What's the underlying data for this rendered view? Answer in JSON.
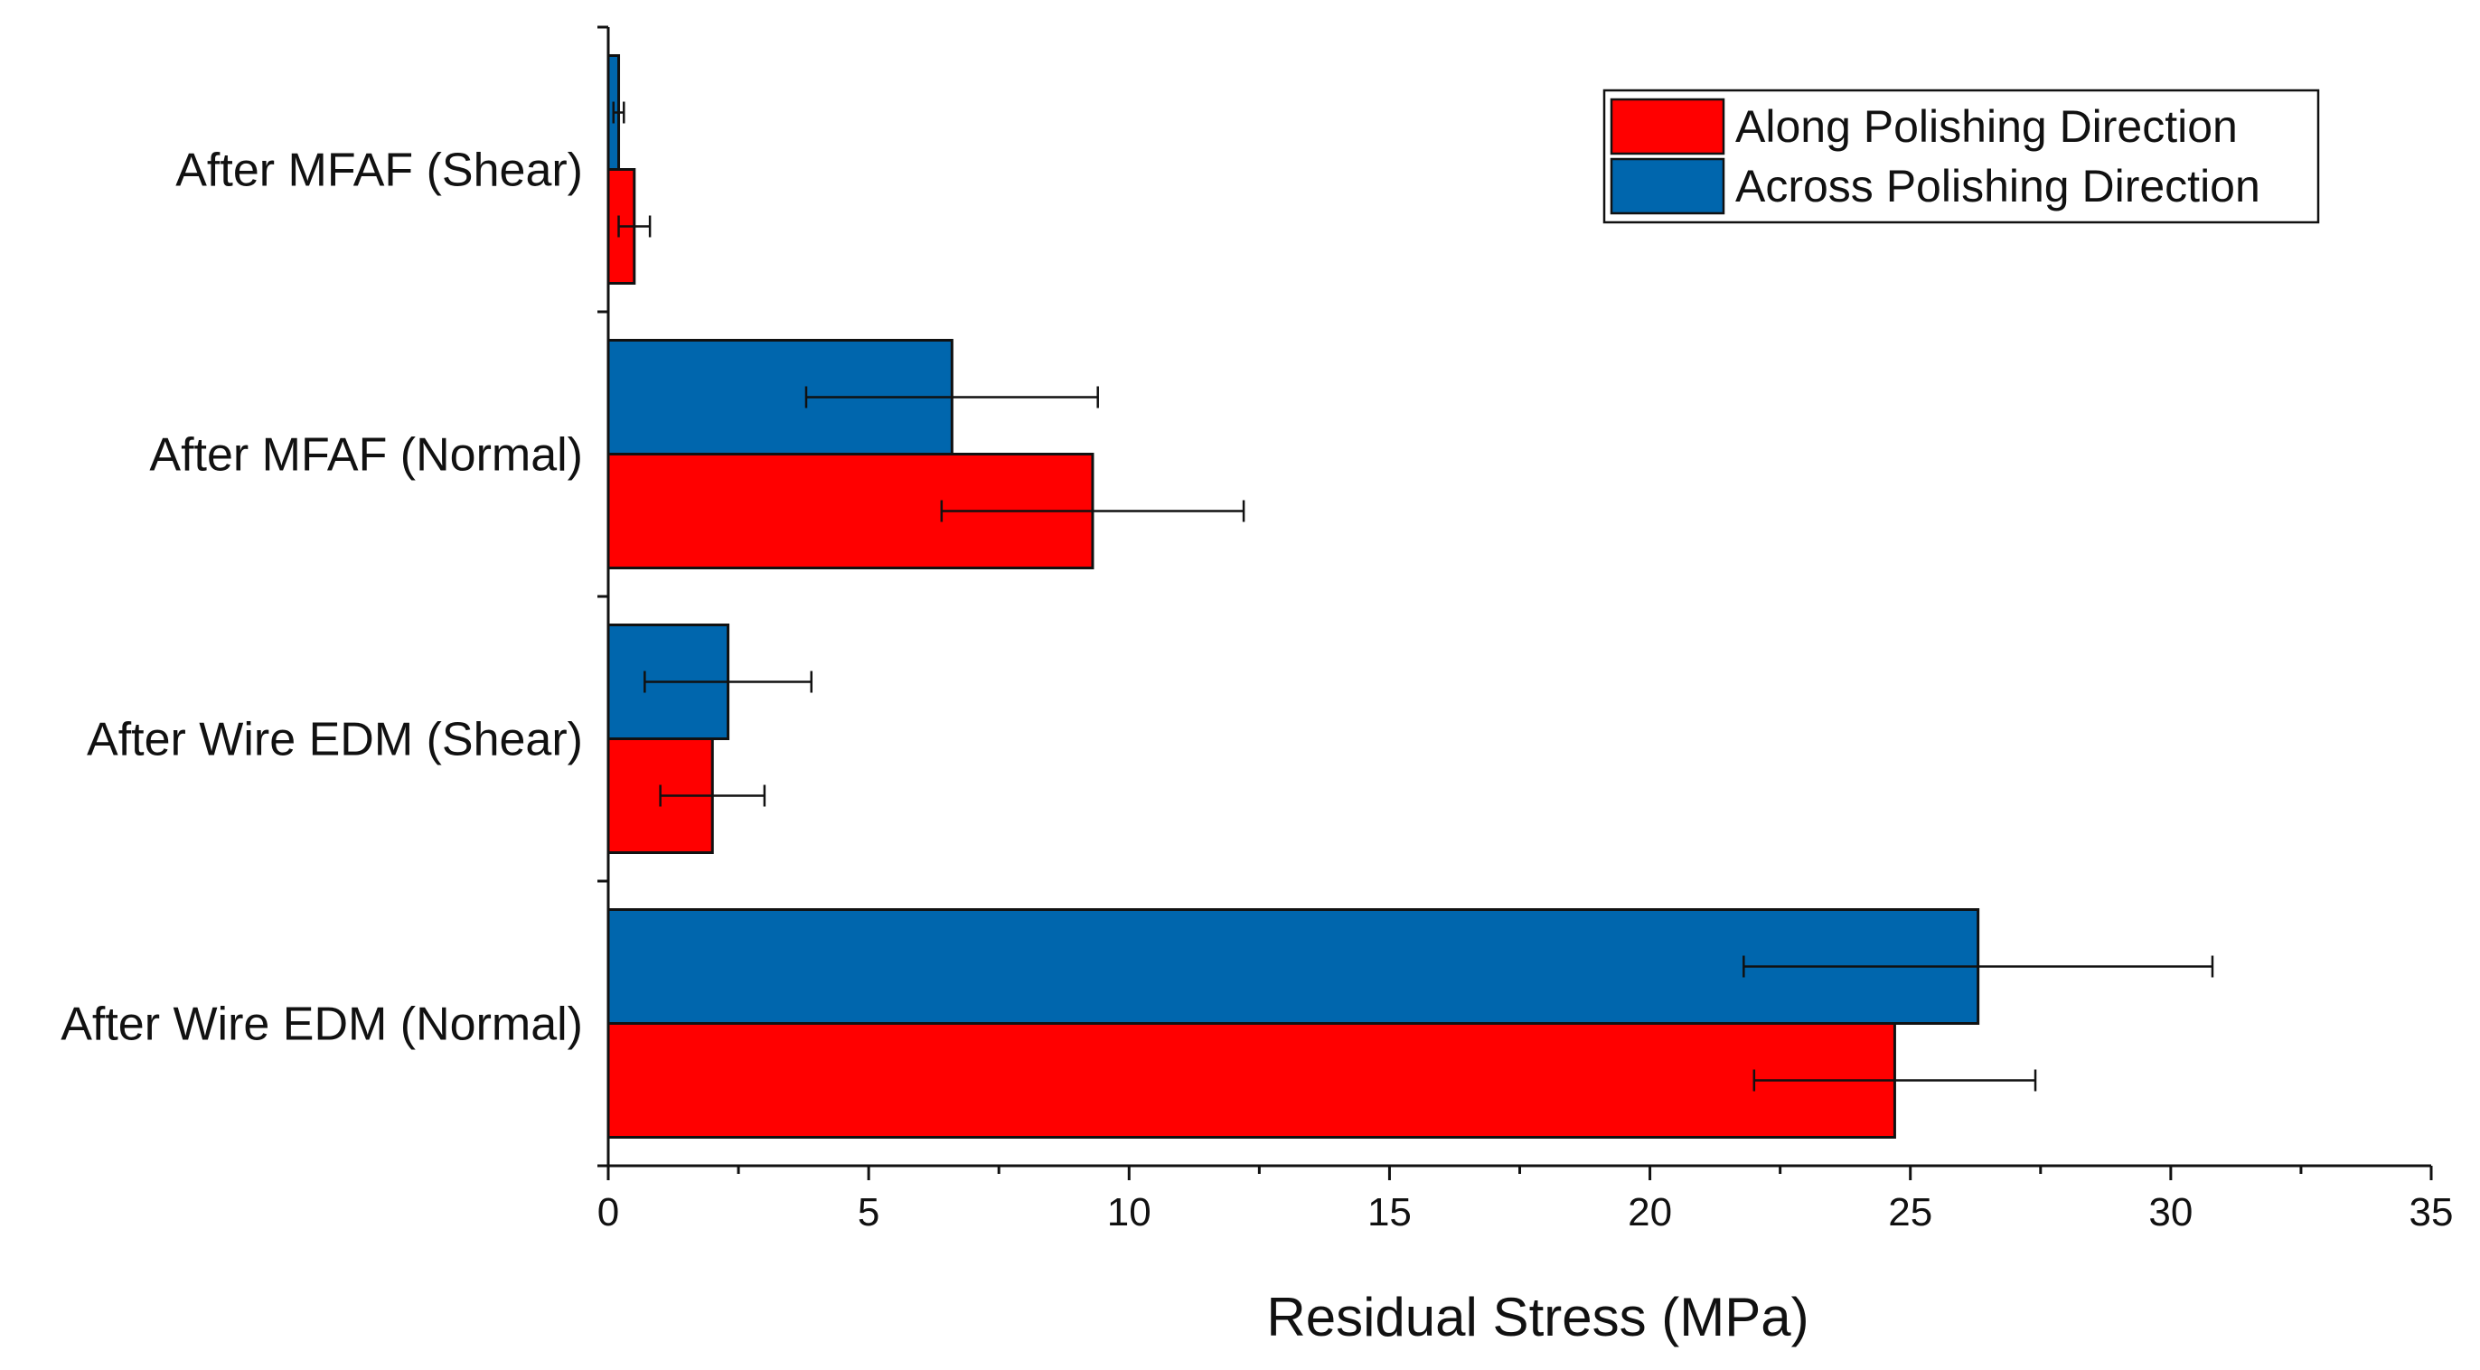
{
  "chart_data": {
    "type": "bar",
    "orientation": "horizontal",
    "title": "",
    "xlabel": "Residual Stress (MPa)",
    "ylabel": "",
    "xlim": [
      0,
      35
    ],
    "xticks": [
      "0",
      "5",
      "10",
      "15",
      "20",
      "25",
      "30",
      "35"
    ],
    "categories": [
      "After Wire EDM (Normal)",
      "After Wire EDM (Shear)",
      "After MFAF (Normal)",
      "After MFAF (Shear)"
    ],
    "series": [
      {
        "name": "Along Polishing Direction",
        "color": "#ff0000",
        "values": [
          24.7,
          2.0,
          9.3,
          0.5
        ],
        "errors": [
          2.7,
          1.0,
          2.9,
          0.3
        ]
      },
      {
        "name": "Across Polishing Direction",
        "color": "#0066ad",
        "values": [
          26.3,
          2.3,
          6.6,
          0.2
        ],
        "errors": [
          4.5,
          1.6,
          2.8,
          0.1
        ]
      }
    ],
    "legend_position": "top-right",
    "grid": false
  }
}
